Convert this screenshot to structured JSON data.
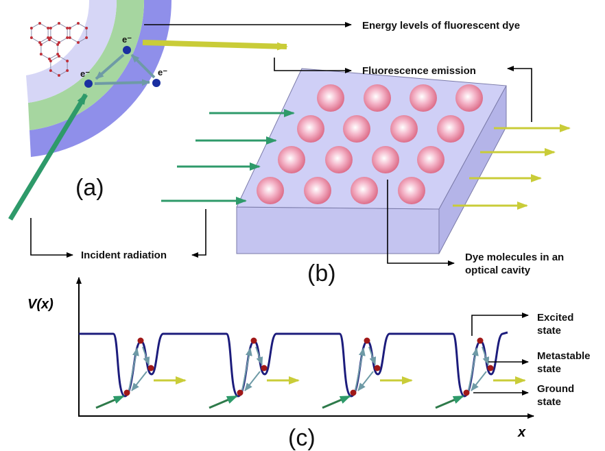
{
  "panel_a": {
    "label": "(a)",
    "electrons": [
      "e⁻",
      "e⁻",
      "e⁻"
    ]
  },
  "panel_b": {
    "label": "(b)"
  },
  "panel_c": {
    "label": "(c)",
    "y_axis": "V(x)",
    "x_axis": "x"
  },
  "annotations": {
    "energy_levels": "Energy levels of fluorescent dye",
    "fluorescence_emission": "Fluorescence emission",
    "incident_radiation": "Incident radiation",
    "dye_molecules": [
      "Dye molecules in an",
      "optical cavity"
    ],
    "excited_state": [
      "Excited",
      "state"
    ],
    "metastable_state": [
      "Metastable",
      "state"
    ],
    "ground_state": [
      "Ground",
      "state"
    ]
  }
}
